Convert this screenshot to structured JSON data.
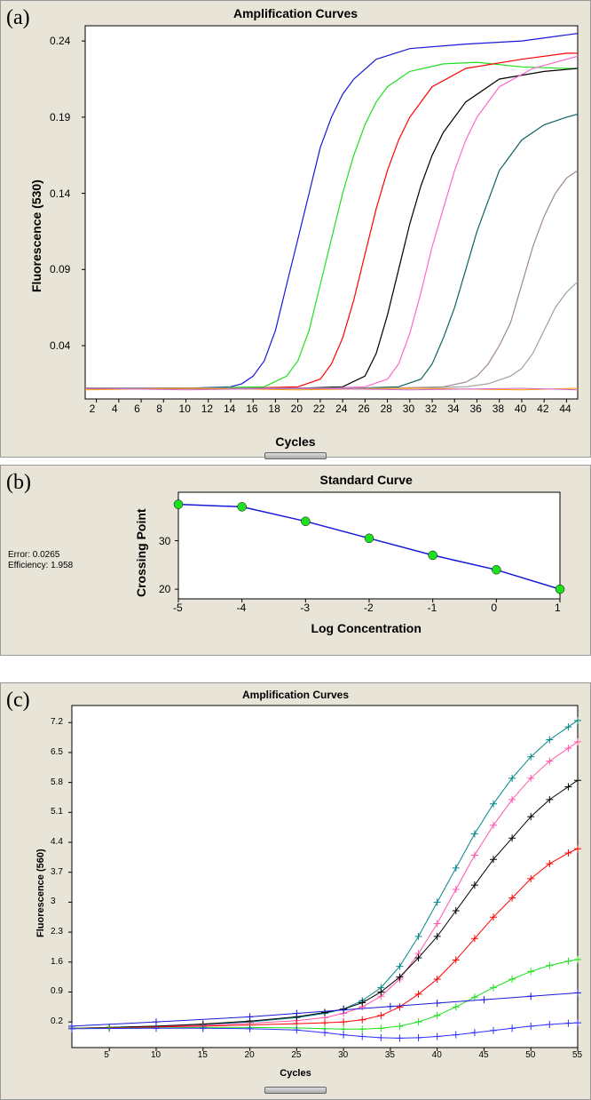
{
  "panelA": {
    "label": "(a)",
    "title": "Amplification Curves",
    "title_fontsize": 14,
    "xLabel": "Cycles",
    "yLabel": "Fluorescence (530)",
    "background_color": "#e8e4d8",
    "plot_background": "#ffffff",
    "xlim": [
      1,
      45
    ],
    "ylim": [
      0.005,
      0.25
    ],
    "xticks": [
      2,
      4,
      6,
      8,
      10,
      12,
      14,
      16,
      18,
      20,
      22,
      24,
      26,
      28,
      30,
      32,
      34,
      36,
      38,
      40,
      42,
      44
    ],
    "yticks": [
      0.04,
      0.09,
      0.14,
      0.19,
      0.24
    ],
    "tick_fontsize": 12,
    "series": [
      {
        "color": "#1818d8",
        "width": 1.2,
        "points": [
          [
            1,
            0.012
          ],
          [
            5,
            0.012
          ],
          [
            10,
            0.012
          ],
          [
            14,
            0.013
          ],
          [
            15,
            0.015
          ],
          [
            16,
            0.02
          ],
          [
            17,
            0.03
          ],
          [
            18,
            0.05
          ],
          [
            19,
            0.08
          ],
          [
            20,
            0.11
          ],
          [
            21,
            0.14
          ],
          [
            22,
            0.17
          ],
          [
            23,
            0.19
          ],
          [
            24,
            0.205
          ],
          [
            25,
            0.215
          ],
          [
            27,
            0.228
          ],
          [
            30,
            0.235
          ],
          [
            35,
            0.238
          ],
          [
            40,
            0.24
          ],
          [
            44,
            0.244
          ],
          [
            45,
            0.245
          ]
        ]
      },
      {
        "color": "#1ee01e",
        "width": 1.2,
        "points": [
          [
            1,
            0.012
          ],
          [
            10,
            0.012
          ],
          [
            17,
            0.013
          ],
          [
            19,
            0.02
          ],
          [
            20,
            0.03
          ],
          [
            21,
            0.05
          ],
          [
            22,
            0.08
          ],
          [
            23,
            0.11
          ],
          [
            24,
            0.14
          ],
          [
            25,
            0.165
          ],
          [
            26,
            0.185
          ],
          [
            27,
            0.2
          ],
          [
            28,
            0.21
          ],
          [
            30,
            0.22
          ],
          [
            33,
            0.225
          ],
          [
            36,
            0.226
          ],
          [
            40,
            0.223
          ],
          [
            44,
            0.222
          ],
          [
            45,
            0.222
          ]
        ]
      },
      {
        "color": "#ff0000",
        "width": 1.2,
        "points": [
          [
            1,
            0.012
          ],
          [
            15,
            0.012
          ],
          [
            20,
            0.013
          ],
          [
            22,
            0.018
          ],
          [
            23,
            0.028
          ],
          [
            24,
            0.045
          ],
          [
            25,
            0.07
          ],
          [
            26,
            0.1
          ],
          [
            27,
            0.13
          ],
          [
            28,
            0.155
          ],
          [
            29,
            0.175
          ],
          [
            30,
            0.19
          ],
          [
            32,
            0.21
          ],
          [
            35,
            0.222
          ],
          [
            40,
            0.228
          ],
          [
            44,
            0.232
          ],
          [
            45,
            0.232
          ]
        ]
      },
      {
        "color": "#000000",
        "width": 1.2,
        "points": [
          [
            1,
            0.012
          ],
          [
            20,
            0.012
          ],
          [
            24,
            0.013
          ],
          [
            26,
            0.02
          ],
          [
            27,
            0.035
          ],
          [
            28,
            0.06
          ],
          [
            29,
            0.09
          ],
          [
            30,
            0.12
          ],
          [
            31,
            0.145
          ],
          [
            32,
            0.165
          ],
          [
            33,
            0.18
          ],
          [
            35,
            0.2
          ],
          [
            38,
            0.215
          ],
          [
            42,
            0.22
          ],
          [
            45,
            0.222
          ]
        ]
      },
      {
        "color": "#ff66cc",
        "width": 1.2,
        "points": [
          [
            1,
            0.012
          ],
          [
            22,
            0.012
          ],
          [
            26,
            0.013
          ],
          [
            28,
            0.018
          ],
          [
            29,
            0.028
          ],
          [
            30,
            0.048
          ],
          [
            31,
            0.075
          ],
          [
            32,
            0.105
          ],
          [
            33,
            0.13
          ],
          [
            34,
            0.155
          ],
          [
            35,
            0.175
          ],
          [
            36,
            0.19
          ],
          [
            38,
            0.21
          ],
          [
            41,
            0.222
          ],
          [
            44,
            0.228
          ],
          [
            45,
            0.23
          ]
        ]
      },
      {
        "color": "#106060",
        "width": 1.2,
        "points": [
          [
            1,
            0.012
          ],
          [
            25,
            0.012
          ],
          [
            29,
            0.013
          ],
          [
            31,
            0.018
          ],
          [
            32,
            0.028
          ],
          [
            33,
            0.045
          ],
          [
            34,
            0.065
          ],
          [
            35,
            0.09
          ],
          [
            36,
            0.115
          ],
          [
            37,
            0.135
          ],
          [
            38,
            0.155
          ],
          [
            40,
            0.175
          ],
          [
            42,
            0.185
          ],
          [
            44,
            0.19
          ],
          [
            45,
            0.192
          ]
        ]
      },
      {
        "color": "#a08890",
        "width": 1.2,
        "points": [
          [
            1,
            0.012
          ],
          [
            28,
            0.012
          ],
          [
            33,
            0.013
          ],
          [
            35,
            0.016
          ],
          [
            36,
            0.02
          ],
          [
            37,
            0.028
          ],
          [
            38,
            0.04
          ],
          [
            39,
            0.055
          ],
          [
            40,
            0.08
          ],
          [
            41,
            0.105
          ],
          [
            42,
            0.125
          ],
          [
            43,
            0.14
          ],
          [
            44,
            0.15
          ],
          [
            45,
            0.155
          ]
        ]
      },
      {
        "color": "#a0a0a0",
        "width": 1.2,
        "points": [
          [
            1,
            0.012
          ],
          [
            30,
            0.012
          ],
          [
            35,
            0.013
          ],
          [
            37,
            0.015
          ],
          [
            39,
            0.02
          ],
          [
            40,
            0.025
          ],
          [
            41,
            0.035
          ],
          [
            42,
            0.05
          ],
          [
            43,
            0.065
          ],
          [
            44,
            0.075
          ],
          [
            45,
            0.082
          ]
        ]
      },
      {
        "color": "#ff9900",
        "width": 1.0,
        "points": [
          [
            1,
            0.011
          ],
          [
            10,
            0.012
          ],
          [
            20,
            0.011
          ],
          [
            30,
            0.012
          ],
          [
            40,
            0.011
          ],
          [
            45,
            0.012
          ]
        ]
      },
      {
        "color": "#cc66cc",
        "width": 1.0,
        "points": [
          [
            1,
            0.012
          ],
          [
            10,
            0.011
          ],
          [
            20,
            0.012
          ],
          [
            30,
            0.011
          ],
          [
            40,
            0.012
          ],
          [
            45,
            0.011
          ]
        ]
      }
    ]
  },
  "panelB": {
    "label": "(b)",
    "title": "Standard Curve",
    "xLabel": "Log Concentration",
    "yLabel": "Crossing Point",
    "error_text": "Error: 0.0265",
    "efficiency_text": "Efficiency: 1.958",
    "background_color": "#e8e4d8",
    "plot_background": "#ffffff",
    "xlim": [
      -5,
      1
    ],
    "ylim": [
      18,
      40
    ],
    "xticks": [
      -5,
      -4,
      -3,
      -2,
      -1,
      0,
      1
    ],
    "yticks": [
      20,
      30
    ],
    "line_color": "#1818d8",
    "marker_color": "#1ee01e",
    "marker_size": 5,
    "points": [
      [
        -5,
        37.5
      ],
      [
        -4,
        37
      ],
      [
        -3,
        34
      ],
      [
        -2,
        30.5
      ],
      [
        -1,
        27
      ],
      [
        0,
        24
      ],
      [
        1,
        20
      ]
    ]
  },
  "panelC": {
    "label": "(c)",
    "title": "Amplification Curves",
    "xLabel": "Cycles",
    "yLabel": "Fluorescence (560)",
    "background_color": "#e8e4d8",
    "plot_background": "#ffffff",
    "xlim": [
      1,
      55
    ],
    "ylim": [
      -0.4,
      7.6
    ],
    "xticks": [
      5,
      10,
      15,
      20,
      25,
      30,
      35,
      40,
      45,
      50,
      55
    ],
    "yticks": [
      0.2,
      0.9,
      1.6,
      2.3,
      3.0,
      3.7,
      4.4,
      5.1,
      5.8,
      6.5,
      7.2
    ],
    "marker": "plus",
    "marker_size": 4,
    "series": [
      {
        "color": "#008888",
        "points": [
          [
            1,
            0.05
          ],
          [
            5,
            0.07
          ],
          [
            10,
            0.1
          ],
          [
            15,
            0.14
          ],
          [
            20,
            0.2
          ],
          [
            25,
            0.3
          ],
          [
            28,
            0.4
          ],
          [
            30,
            0.5
          ],
          [
            32,
            0.7
          ],
          [
            34,
            1.0
          ],
          [
            36,
            1.5
          ],
          [
            38,
            2.2
          ],
          [
            40,
            3.0
          ],
          [
            42,
            3.8
          ],
          [
            44,
            4.6
          ],
          [
            46,
            5.3
          ],
          [
            48,
            5.9
          ],
          [
            50,
            6.4
          ],
          [
            52,
            6.8
          ],
          [
            54,
            7.1
          ],
          [
            55,
            7.25
          ]
        ]
      },
      {
        "color": "#ff55aa",
        "points": [
          [
            1,
            0.05
          ],
          [
            5,
            0.07
          ],
          [
            10,
            0.09
          ],
          [
            15,
            0.12
          ],
          [
            20,
            0.17
          ],
          [
            25,
            0.23
          ],
          [
            28,
            0.3
          ],
          [
            30,
            0.4
          ],
          [
            32,
            0.55
          ],
          [
            34,
            0.8
          ],
          [
            36,
            1.2
          ],
          [
            38,
            1.8
          ],
          [
            40,
            2.5
          ],
          [
            42,
            3.3
          ],
          [
            44,
            4.1
          ],
          [
            46,
            4.8
          ],
          [
            48,
            5.4
          ],
          [
            50,
            5.9
          ],
          [
            52,
            6.3
          ],
          [
            54,
            6.6
          ],
          [
            55,
            6.75
          ]
        ]
      },
      {
        "color": "#000000",
        "points": [
          [
            1,
            0.05
          ],
          [
            5,
            0.07
          ],
          [
            10,
            0.1
          ],
          [
            15,
            0.15
          ],
          [
            20,
            0.22
          ],
          [
            25,
            0.32
          ],
          [
            28,
            0.42
          ],
          [
            30,
            0.5
          ],
          [
            32,
            0.65
          ],
          [
            34,
            0.9
          ],
          [
            36,
            1.25
          ],
          [
            38,
            1.7
          ],
          [
            40,
            2.2
          ],
          [
            42,
            2.8
          ],
          [
            44,
            3.4
          ],
          [
            46,
            4.0
          ],
          [
            48,
            4.5
          ],
          [
            50,
            5.0
          ],
          [
            52,
            5.4
          ],
          [
            54,
            5.7
          ],
          [
            55,
            5.85
          ]
        ]
      },
      {
        "color": "#ff0000",
        "points": [
          [
            1,
            0.05
          ],
          [
            5,
            0.06
          ],
          [
            10,
            0.08
          ],
          [
            15,
            0.1
          ],
          [
            20,
            0.13
          ],
          [
            25,
            0.16
          ],
          [
            28,
            0.18
          ],
          [
            30,
            0.2
          ],
          [
            32,
            0.25
          ],
          [
            34,
            0.35
          ],
          [
            36,
            0.55
          ],
          [
            38,
            0.85
          ],
          [
            40,
            1.2
          ],
          [
            42,
            1.65
          ],
          [
            44,
            2.15
          ],
          [
            46,
            2.65
          ],
          [
            48,
            3.1
          ],
          [
            50,
            3.55
          ],
          [
            52,
            3.9
          ],
          [
            54,
            4.15
          ],
          [
            55,
            4.25
          ]
        ]
      },
      {
        "color": "#1ee01e",
        "points": [
          [
            1,
            0.05
          ],
          [
            5,
            0.05
          ],
          [
            10,
            0.06
          ],
          [
            15,
            0.07
          ],
          [
            20,
            0.07
          ],
          [
            25,
            0.06
          ],
          [
            28,
            0.04
          ],
          [
            30,
            0.03
          ],
          [
            32,
            0.03
          ],
          [
            34,
            0.05
          ],
          [
            36,
            0.1
          ],
          [
            38,
            0.2
          ],
          [
            40,
            0.35
          ],
          [
            42,
            0.55
          ],
          [
            44,
            0.78
          ],
          [
            46,
            1.0
          ],
          [
            48,
            1.2
          ],
          [
            50,
            1.38
          ],
          [
            52,
            1.52
          ],
          [
            54,
            1.62
          ],
          [
            55,
            1.66
          ]
        ]
      },
      {
        "color": "#3030ff",
        "points": [
          [
            1,
            0.04
          ],
          [
            10,
            0.05
          ],
          [
            15,
            0.05
          ],
          [
            20,
            0.04
          ],
          [
            25,
            0.01
          ],
          [
            28,
            -0.05
          ],
          [
            30,
            -0.1
          ],
          [
            32,
            -0.14
          ],
          [
            34,
            -0.17
          ],
          [
            36,
            -0.18
          ],
          [
            38,
            -0.17
          ],
          [
            40,
            -0.14
          ],
          [
            42,
            -0.1
          ],
          [
            44,
            -0.05
          ],
          [
            46,
            0.0
          ],
          [
            48,
            0.05
          ],
          [
            50,
            0.1
          ],
          [
            52,
            0.14
          ],
          [
            54,
            0.17
          ],
          [
            55,
            0.18
          ]
        ]
      },
      {
        "color": "#1818d8",
        "points": [
          [
            1,
            0.1
          ],
          [
            10,
            0.2
          ],
          [
            20,
            0.32
          ],
          [
            25,
            0.4
          ],
          [
            30,
            0.48
          ],
          [
            35,
            0.56
          ],
          [
            40,
            0.64
          ],
          [
            45,
            0.72
          ],
          [
            50,
            0.8
          ],
          [
            55,
            0.88
          ]
        ]
      }
    ]
  }
}
